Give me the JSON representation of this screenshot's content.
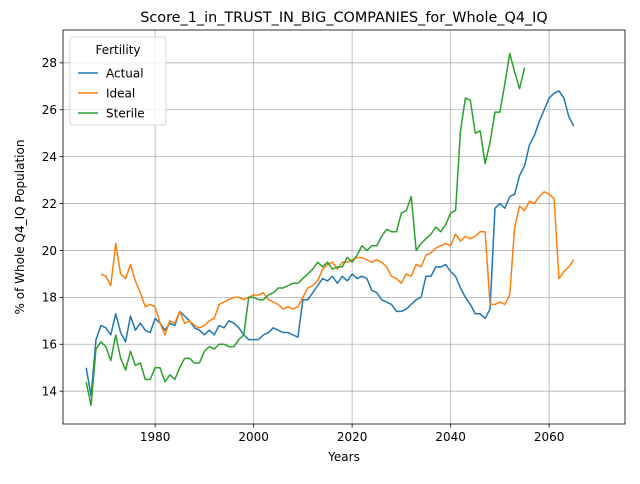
{
  "chart_data": {
    "type": "line",
    "title": "Score_1_in_TRUST_IN_BIG_COMPANIES_for_Whole_Q4_IQ",
    "x_label": "Years",
    "y_label": "% of Whole Q4_IQ Population",
    "legend_title": "Fertility",
    "legend_position": "upper left",
    "grid": true,
    "xlim": [
      1961.3,
      2075.4
    ],
    "xticks": [
      1980,
      2000,
      2020,
      2040,
      2060
    ],
    "ylim": [
      12.6,
      29.4
    ],
    "yticks": [
      14,
      16,
      18,
      20,
      22,
      24,
      26,
      28
    ],
    "x": [
      1966,
      1967,
      1968,
      1969,
      1970,
      1971,
      1972,
      1973,
      1974,
      1975,
      1976,
      1977,
      1978,
      1979,
      1980,
      1981,
      1982,
      1983,
      1984,
      1985,
      1986,
      1987,
      1988,
      1989,
      1990,
      1991,
      1992,
      1993,
      1994,
      1995,
      1996,
      1997,
      1998,
      1999,
      2000,
      2001,
      2002,
      2003,
      2004,
      2005,
      2006,
      2007,
      2008,
      2009,
      2010,
      2011,
      2012,
      2013,
      2014,
      2015,
      2016,
      2017,
      2018,
      2019,
      2020,
      2021,
      2022,
      2023,
      2024,
      2025,
      2026,
      2027,
      2028,
      2029,
      2030,
      2031,
      2032,
      2033,
      2034,
      2035,
      2036,
      2037,
      2038,
      2039,
      2040,
      2041,
      2042,
      2043,
      2044,
      2045,
      2046,
      2047,
      2048,
      2049,
      2050,
      2051,
      2052,
      2053,
      2054,
      2055,
      2056,
      2057,
      2058,
      2059,
      2060,
      2061,
      2062,
      2063,
      2064,
      2065
    ],
    "series": [
      {
        "name": "Actual",
        "color": "#1f77b4",
        "values": [
          15.0,
          13.8,
          16.2,
          16.8,
          16.7,
          16.4,
          17.3,
          16.5,
          16.1,
          17.2,
          16.6,
          16.9,
          16.6,
          16.5,
          17.1,
          16.9,
          16.6,
          16.9,
          16.8,
          17.4,
          17.2,
          17.0,
          16.7,
          16.6,
          16.4,
          16.6,
          16.4,
          16.8,
          16.7,
          17.0,
          16.9,
          16.7,
          16.4,
          16.2,
          16.2,
          16.2,
          16.4,
          16.5,
          16.7,
          16.6,
          16.5,
          16.5,
          16.4,
          16.3,
          17.9,
          17.9,
          18.2,
          18.5,
          18.8,
          18.7,
          18.9,
          18.6,
          18.9,
          18.7,
          19.0,
          18.8,
          18.9,
          18.8,
          18.3,
          18.2,
          17.9,
          17.8,
          17.7,
          17.4,
          17.4,
          17.5,
          17.7,
          17.9,
          18.0,
          18.9,
          18.9,
          19.3,
          19.3,
          19.4,
          19.1,
          18.9,
          18.4,
          18.0,
          17.7,
          17.3,
          17.3,
          17.1,
          17.5,
          21.8,
          22.0,
          21.8,
          22.3,
          22.4,
          23.2,
          23.6,
          24.5,
          24.9,
          25.5,
          26.0,
          26.5,
          26.7,
          26.8,
          26.5,
          25.7,
          25.3
        ]
      },
      {
        "name": "Ideal",
        "color": "#ff7f0e",
        "values": [
          null,
          null,
          null,
          19.0,
          18.9,
          18.5,
          20.3,
          19.0,
          18.8,
          19.4,
          18.7,
          18.2,
          17.6,
          17.7,
          17.6,
          16.9,
          16.4,
          17.0,
          16.9,
          17.4,
          16.9,
          17.0,
          16.8,
          16.7,
          16.8,
          17.0,
          17.1,
          17.7,
          17.8,
          17.9,
          18.0,
          18.0,
          17.9,
          18.0,
          18.1,
          18.1,
          18.2,
          17.9,
          17.8,
          17.7,
          17.5,
          17.6,
          17.5,
          17.6,
          18.0,
          18.4,
          18.5,
          18.7,
          19.2,
          19.4,
          19.5,
          19.2,
          19.5,
          19.5,
          19.6,
          19.7,
          19.7,
          19.6,
          19.5,
          19.6,
          19.5,
          19.3,
          18.9,
          18.8,
          18.6,
          19.0,
          18.9,
          19.4,
          19.3,
          19.8,
          19.9,
          20.1,
          20.2,
          20.3,
          20.2,
          20.7,
          20.4,
          20.6,
          20.5,
          20.6,
          20.8,
          20.8,
          17.7,
          17.7,
          17.8,
          17.7,
          18.1,
          21.0,
          21.9,
          21.7,
          22.1,
          22.0,
          22.3,
          22.5,
          22.4,
          22.2,
          18.8,
          19.1,
          19.3,
          19.6
        ]
      },
      {
        "name": "Sterile",
        "color": "#2ca02c",
        "values": [
          14.4,
          13.4,
          15.8,
          16.1,
          15.9,
          15.3,
          16.4,
          15.4,
          14.9,
          15.7,
          15.1,
          15.2,
          14.5,
          14.5,
          15.0,
          15.0,
          14.4,
          14.7,
          14.5,
          15.0,
          15.4,
          15.4,
          15.2,
          15.2,
          15.7,
          15.9,
          15.8,
          16.0,
          16.0,
          15.9,
          15.9,
          16.2,
          16.4,
          18.0,
          18.0,
          17.9,
          17.9,
          18.1,
          18.2,
          18.4,
          18.4,
          18.5,
          18.6,
          18.6,
          18.8,
          19.0,
          19.2,
          19.5,
          19.3,
          19.5,
          19.2,
          19.3,
          19.3,
          19.7,
          19.5,
          19.8,
          20.2,
          20.0,
          20.2,
          20.2,
          20.6,
          20.9,
          20.8,
          20.8,
          21.6,
          21.7,
          22.3,
          20.0,
          20.3,
          20.5,
          20.7,
          21.0,
          20.8,
          21.1,
          21.6,
          21.7,
          25.1,
          26.5,
          26.4,
          25.0,
          25.1,
          23.7,
          24.6,
          25.9,
          25.9,
          27.1,
          28.4,
          27.6,
          26.9,
          27.8,
          null,
          null,
          null,
          null,
          null,
          null,
          null,
          null,
          null,
          null
        ]
      }
    ]
  }
}
